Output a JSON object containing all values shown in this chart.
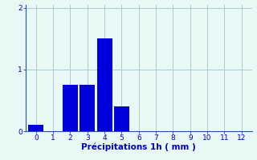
{
  "bar_values": [
    0.1,
    0,
    0.75,
    0.75,
    1.5,
    0.4,
    0,
    0,
    0,
    0,
    0,
    0,
    0
  ],
  "bar_color": "#0000dd",
  "background_color": "#e8f8f4",
  "grid_color": "#aaccd0",
  "axis_color": "#2255aa",
  "xlabel": "Précipitations 1h ( mm )",
  "xlabel_color": "#0000cc",
  "tick_color": "#0000cc",
  "ylim": [
    0,
    2.05
  ],
  "xlim": [
    -0.6,
    12.6
  ],
  "yticks": [
    0,
    1,
    2
  ],
  "xticks": [
    0,
    1,
    2,
    3,
    4,
    5,
    6,
    7,
    8,
    9,
    10,
    11,
    12
  ],
  "bar_width": 0.9,
  "xlabel_fontsize": 7.5,
  "tick_fontsize": 6.5
}
